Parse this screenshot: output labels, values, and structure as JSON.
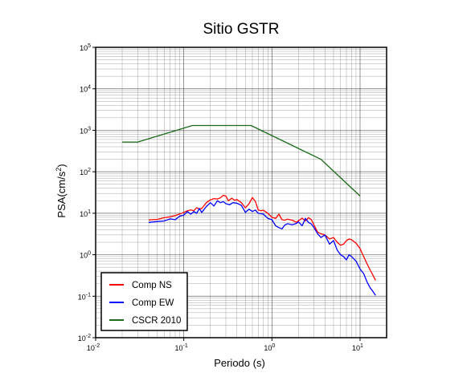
{
  "chart_data": {
    "type": "line",
    "title": "Sitio GSTR",
    "xlabel": "Periodo (s)",
    "ylabel": "PSA(cm/s2)",
    "ylabel_parts": {
      "main": "PSA(cm/s",
      "sup": "2",
      "end": ")"
    },
    "x_scale": "log",
    "y_scale": "log",
    "xlim": [
      0.01,
      20
    ],
    "ylim": [
      0.01,
      100000
    ],
    "grid": true,
    "legend_position": "bottom-left",
    "x_ticks": [
      {
        "base": "10",
        "exp": "-2",
        "value": 0.01
      },
      {
        "base": "10",
        "exp": "-1",
        "value": 0.1
      },
      {
        "base": "10",
        "exp": "0",
        "value": 1
      },
      {
        "base": "10",
        "exp": "1",
        "value": 10
      }
    ],
    "y_ticks": [
      {
        "base": "10",
        "exp": "-2",
        "value": 0.01
      },
      {
        "base": "10",
        "exp": "-1",
        "value": 0.1
      },
      {
        "base": "10",
        "exp": "0",
        "value": 1
      },
      {
        "base": "10",
        "exp": "1",
        "value": 10
      },
      {
        "base": "10",
        "exp": "2",
        "value": 100
      },
      {
        "base": "10",
        "exp": "3",
        "value": 1000
      },
      {
        "base": "10",
        "exp": "4",
        "value": 10000
      },
      {
        "base": "10",
        "exp": "5",
        "value": 100000
      }
    ],
    "series": [
      {
        "name": "Comp NS",
        "color": "#ff0000",
        "points": [
          [
            0.04,
            6.9
          ],
          [
            0.05,
            7.1
          ],
          [
            0.06,
            7.8
          ],
          [
            0.07,
            8.2
          ],
          [
            0.08,
            8.8
          ],
          [
            0.09,
            9.6
          ],
          [
            0.1,
            10.5
          ],
          [
            0.11,
            11.5
          ],
          [
            0.12,
            12.0
          ],
          [
            0.13,
            11.5
          ],
          [
            0.14,
            13.5
          ],
          [
            0.15,
            12.8
          ],
          [
            0.16,
            13.0
          ],
          [
            0.18,
            18.0
          ],
          [
            0.2,
            21.0
          ],
          [
            0.22,
            22.5
          ],
          [
            0.24,
            22.0
          ],
          [
            0.26,
            23.5
          ],
          [
            0.28,
            27.0
          ],
          [
            0.3,
            26.0
          ],
          [
            0.32,
            20.0
          ],
          [
            0.35,
            23.0
          ],
          [
            0.38,
            20.5
          ],
          [
            0.4,
            21.5
          ],
          [
            0.45,
            18.0
          ],
          [
            0.5,
            13.5
          ],
          [
            0.55,
            17.0
          ],
          [
            0.6,
            24.0
          ],
          [
            0.65,
            19.0
          ],
          [
            0.7,
            12.0
          ],
          [
            0.75,
            11.5
          ],
          [
            0.8,
            11.8
          ],
          [
            0.9,
            10.0
          ],
          [
            1.0,
            8.0
          ],
          [
            1.1,
            7.5
          ],
          [
            1.2,
            9.5
          ],
          [
            1.3,
            7.0
          ],
          [
            1.4,
            6.8
          ],
          [
            1.5,
            7.2
          ],
          [
            1.7,
            6.8
          ],
          [
            1.9,
            6.0
          ],
          [
            2.0,
            6.6
          ],
          [
            2.2,
            7.6
          ],
          [
            2.4,
            6.5
          ],
          [
            2.6,
            7.8
          ],
          [
            2.8,
            7.0
          ],
          [
            3.0,
            5.2
          ],
          [
            3.3,
            3.5
          ],
          [
            3.6,
            3.2
          ],
          [
            4.0,
            3.0
          ],
          [
            4.5,
            2.4
          ],
          [
            5.0,
            2.6
          ],
          [
            5.5,
            2.0
          ],
          [
            6.0,
            1.7
          ],
          [
            6.5,
            1.8
          ],
          [
            7.0,
            2.2
          ],
          [
            7.5,
            2.4
          ],
          [
            8.0,
            2.3
          ],
          [
            9.0,
            1.9
          ],
          [
            10.0,
            1.4
          ],
          [
            11.0,
            0.9
          ],
          [
            12.0,
            0.6
          ],
          [
            13.0,
            0.43
          ],
          [
            14.0,
            0.32
          ],
          [
            15.0,
            0.24
          ]
        ]
      },
      {
        "name": "Comp EW",
        "color": "#0000ff",
        "points": [
          [
            0.04,
            6.0
          ],
          [
            0.05,
            6.3
          ],
          [
            0.06,
            6.5
          ],
          [
            0.07,
            7.3
          ],
          [
            0.08,
            7.0
          ],
          [
            0.09,
            8.5
          ],
          [
            0.1,
            9.0
          ],
          [
            0.11,
            11.0
          ],
          [
            0.12,
            9.5
          ],
          [
            0.13,
            11.0
          ],
          [
            0.14,
            10.0
          ],
          [
            0.15,
            13.0
          ],
          [
            0.16,
            10.5
          ],
          [
            0.18,
            14.5
          ],
          [
            0.2,
            18.0
          ],
          [
            0.22,
            15.0
          ],
          [
            0.24,
            20.0
          ],
          [
            0.26,
            18.0
          ],
          [
            0.28,
            19.0
          ],
          [
            0.3,
            17.0
          ],
          [
            0.33,
            16.0
          ],
          [
            0.36,
            18.0
          ],
          [
            0.4,
            17.5
          ],
          [
            0.45,
            15.5
          ],
          [
            0.5,
            10.5
          ],
          [
            0.55,
            12.5
          ],
          [
            0.6,
            11.0
          ],
          [
            0.65,
            12.0
          ],
          [
            0.7,
            10.0
          ],
          [
            0.8,
            9.5
          ],
          [
            0.9,
            7.5
          ],
          [
            1.0,
            7.0
          ],
          [
            1.1,
            5.0
          ],
          [
            1.2,
            4.5
          ],
          [
            1.3,
            4.2
          ],
          [
            1.4,
            5.2
          ],
          [
            1.5,
            5.6
          ],
          [
            1.7,
            5.3
          ],
          [
            1.9,
            5.7
          ],
          [
            2.0,
            6.2
          ],
          [
            2.2,
            5.0
          ],
          [
            2.4,
            7.5
          ],
          [
            2.6,
            6.0
          ],
          [
            2.8,
            5.5
          ],
          [
            3.0,
            4.5
          ],
          [
            3.3,
            3.2
          ],
          [
            3.6,
            2.6
          ],
          [
            4.0,
            3.0
          ],
          [
            4.5,
            1.8
          ],
          [
            5.0,
            2.2
          ],
          [
            5.5,
            1.3
          ],
          [
            6.0,
            1.0
          ],
          [
            6.5,
            0.9
          ],
          [
            7.0,
            0.75
          ],
          [
            7.5,
            1.0
          ],
          [
            8.0,
            0.9
          ],
          [
            9.0,
            0.7
          ],
          [
            10.0,
            0.45
          ],
          [
            11.0,
            0.35
          ],
          [
            12.0,
            0.22
          ],
          [
            13.0,
            0.16
          ],
          [
            14.0,
            0.13
          ],
          [
            15.0,
            0.105
          ]
        ]
      },
      {
        "name": "CSCR 2010",
        "color": "#1a6b1a",
        "points": [
          [
            0.02,
            520
          ],
          [
            0.03,
            520
          ],
          [
            0.125,
            1300
          ],
          [
            0.58,
            1300
          ],
          [
            3.6,
            200
          ],
          [
            10.0,
            26
          ]
        ]
      }
    ]
  }
}
